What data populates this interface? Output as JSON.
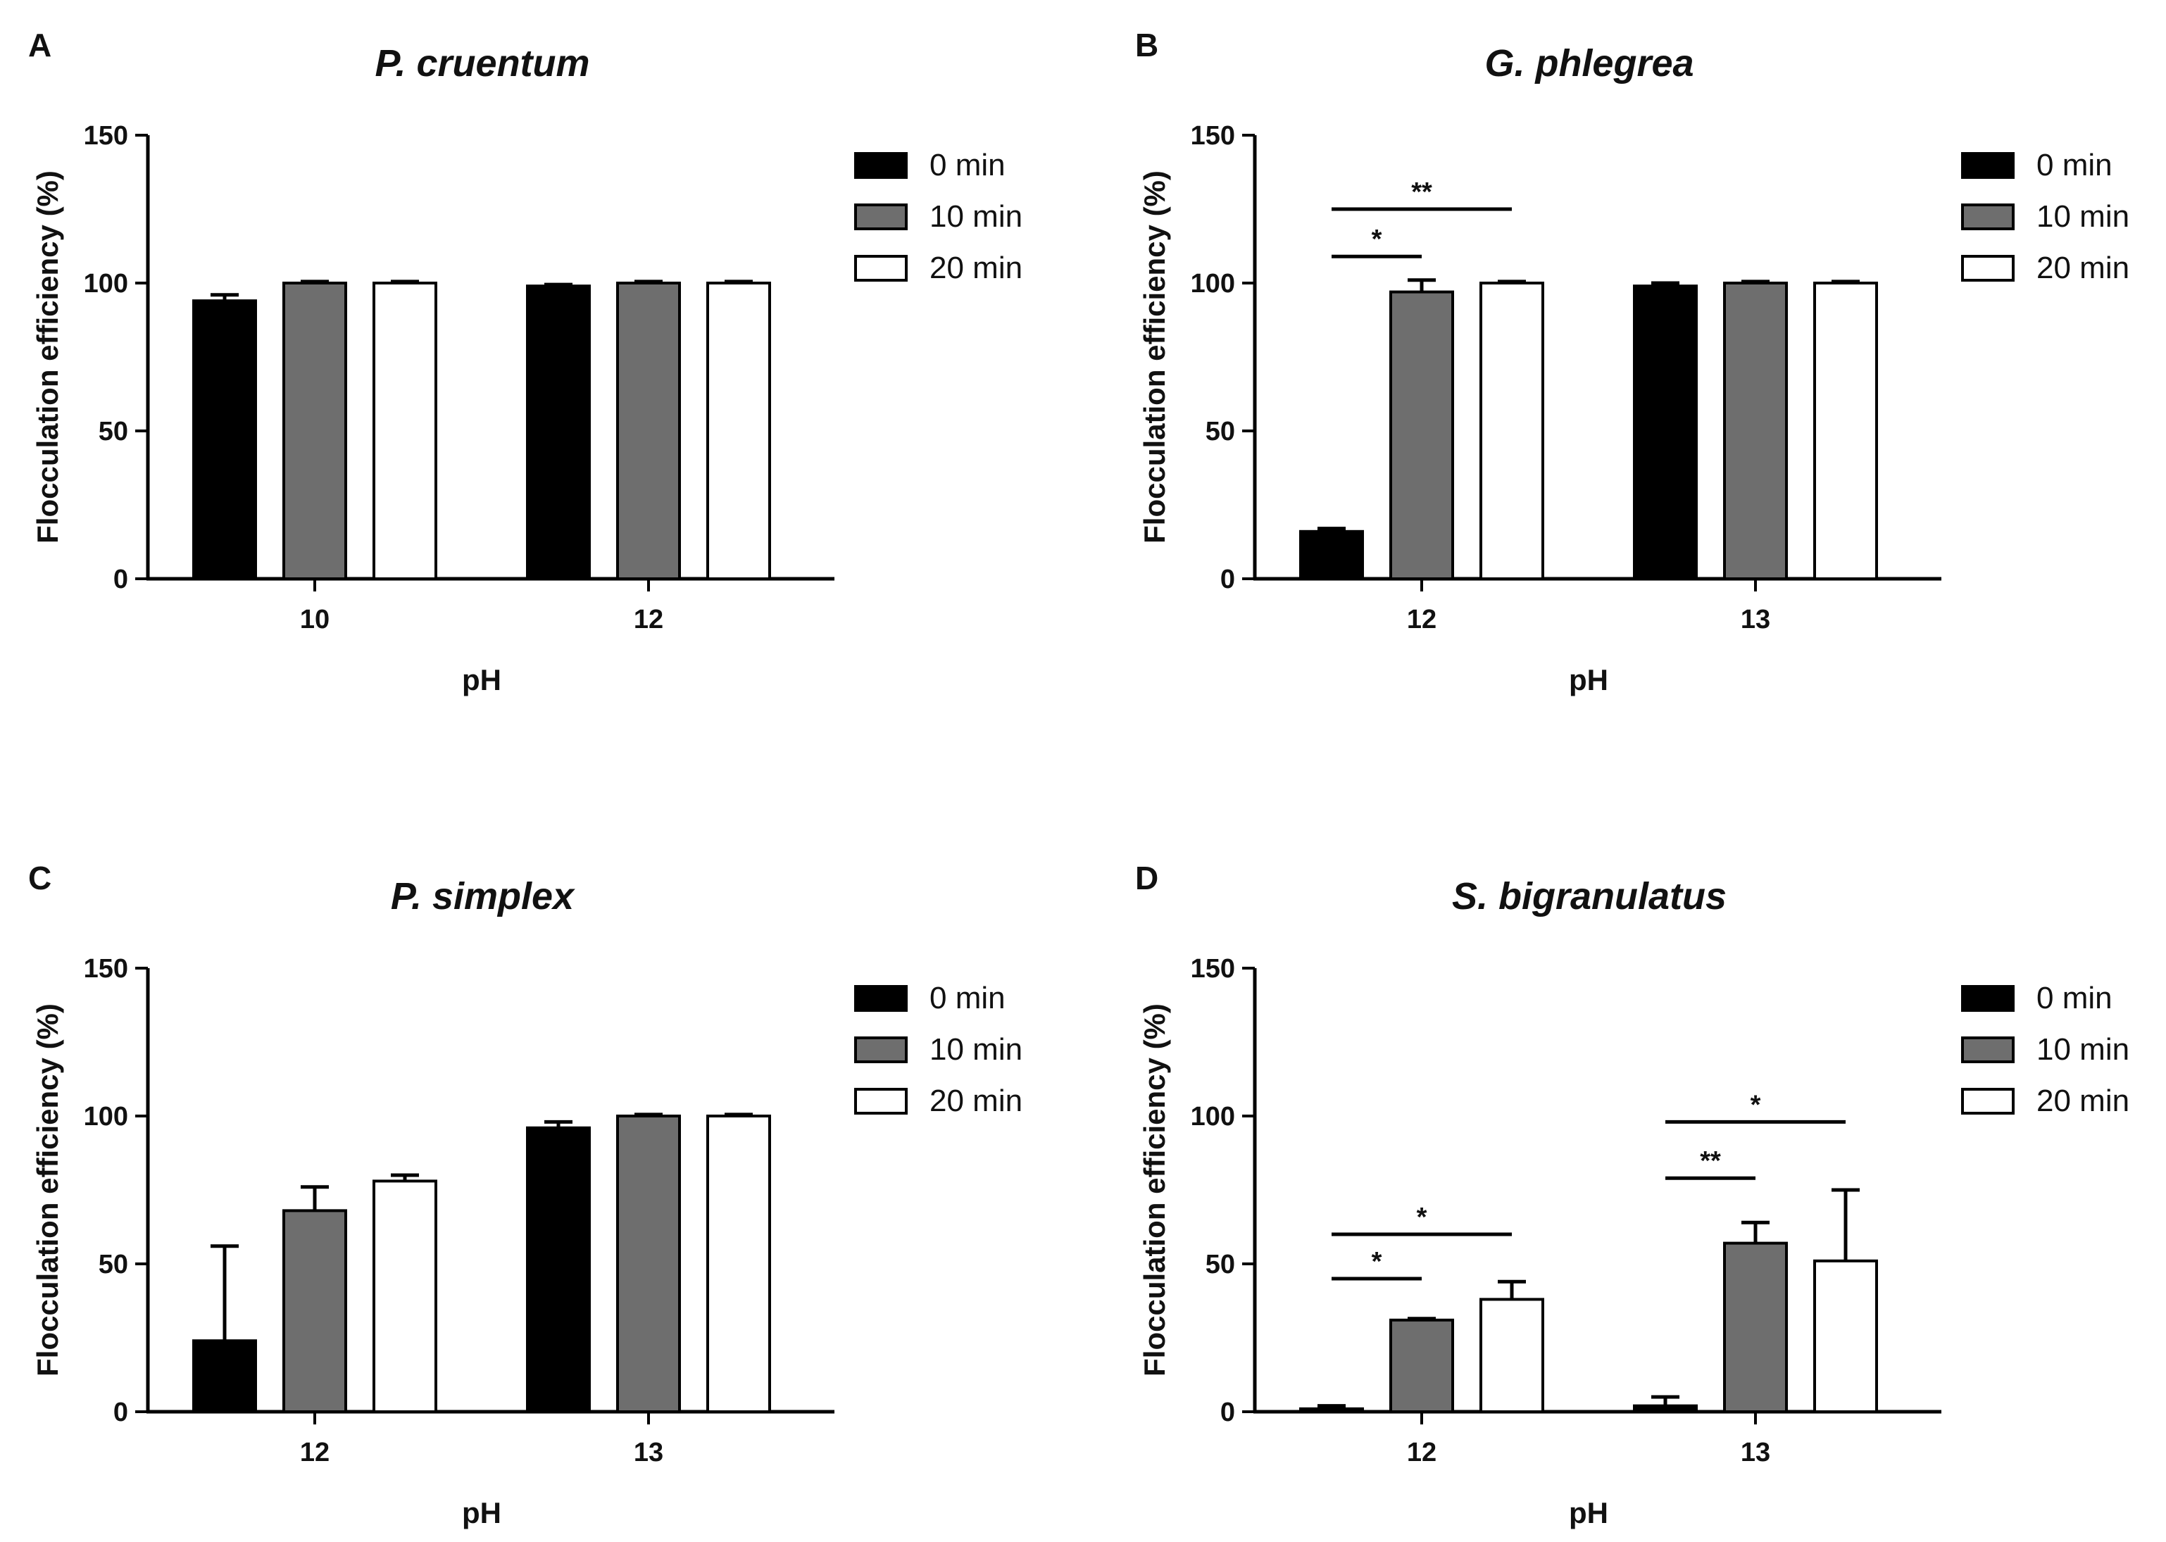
{
  "chart_data": [
    {
      "panel": "A",
      "type": "bar",
      "title": "P. cruentum",
      "xlabel": "pH",
      "ylabel": "Flocculation efficiency (%)",
      "ylim": [
        0,
        150
      ],
      "yticks": [
        "0",
        "50",
        "100",
        "150"
      ],
      "categories": [
        "10",
        "12"
      ],
      "series": [
        {
          "name": "0 min",
          "color": "#000000",
          "values": [
            94,
            99
          ],
          "errors": [
            2,
            0.5
          ]
        },
        {
          "name": "10 min",
          "color": "#6e6e6e",
          "values": [
            100,
            100
          ],
          "errors": [
            0.5,
            0.5
          ]
        },
        {
          "name": "20 min",
          "color": "#ffffff",
          "values": [
            100,
            100
          ],
          "errors": [
            0.5,
            0.5
          ]
        }
      ],
      "significance": [],
      "legend_position": "right"
    },
    {
      "panel": "B",
      "type": "bar",
      "title": "G. phlegrea",
      "xlabel": "pH",
      "ylabel": "Flocculation efficiency (%)",
      "ylim": [
        0,
        150
      ],
      "yticks": [
        "0",
        "50",
        "100",
        "150"
      ],
      "categories": [
        "12",
        "13"
      ],
      "series": [
        {
          "name": "0 min",
          "color": "#000000",
          "values": [
            16,
            99
          ],
          "errors": [
            1,
            1
          ]
        },
        {
          "name": "10 min",
          "color": "#6e6e6e",
          "values": [
            97,
            100
          ],
          "errors": [
            4,
            0.5
          ]
        },
        {
          "name": "20 min",
          "color": "#ffffff",
          "values": [
            100,
            100
          ],
          "errors": [
            0.5,
            0.5
          ]
        }
      ],
      "significance": [
        {
          "category": 0,
          "from": 0,
          "to": 1,
          "y": 109,
          "label": "*"
        },
        {
          "category": 0,
          "from": 0,
          "to": 2,
          "y": 125,
          "label": "**"
        }
      ],
      "legend_position": "right"
    },
    {
      "panel": "C",
      "type": "bar",
      "title": "P. simplex",
      "xlabel": "pH",
      "ylabel": "Flocculation efficiency (%)",
      "ylim": [
        0,
        150
      ],
      "yticks": [
        "0",
        "50",
        "100",
        "150"
      ],
      "categories": [
        "12",
        "13"
      ],
      "series": [
        {
          "name": "0 min",
          "color": "#000000",
          "values": [
            24,
            96
          ],
          "errors": [
            32,
            2
          ]
        },
        {
          "name": "10 min",
          "color": "#6e6e6e",
          "values": [
            68,
            100
          ],
          "errors": [
            8,
            0.5
          ]
        },
        {
          "name": "20 min",
          "color": "#ffffff",
          "values": [
            78,
            100
          ],
          "errors": [
            2,
            0.5
          ]
        }
      ],
      "significance": [],
      "legend_position": "right"
    },
    {
      "panel": "D",
      "type": "bar",
      "title": "S. bigranulatus",
      "xlabel": "pH",
      "ylabel": "Flocculation efficiency (%)",
      "ylim": [
        0,
        150
      ],
      "yticks": [
        "0",
        "50",
        "100",
        "150"
      ],
      "categories": [
        "12",
        "13"
      ],
      "series": [
        {
          "name": "0 min",
          "color": "#000000",
          "values": [
            1,
            2
          ],
          "errors": [
            1,
            3
          ]
        },
        {
          "name": "10 min",
          "color": "#6e6e6e",
          "values": [
            31,
            57
          ],
          "errors": [
            0.5,
            7
          ]
        },
        {
          "name": "20 min",
          "color": "#ffffff",
          "values": [
            38,
            51
          ],
          "errors": [
            6,
            24
          ]
        }
      ],
      "significance": [
        {
          "category": 0,
          "from": 0,
          "to": 1,
          "y": 45,
          "label": "*"
        },
        {
          "category": 0,
          "from": 0,
          "to": 2,
          "y": 60,
          "label": "*"
        },
        {
          "category": 1,
          "from": 0,
          "to": 1,
          "y": 79,
          "label": "**"
        },
        {
          "category": 1,
          "from": 0,
          "to": 2,
          "y": 98,
          "label": "*"
        }
      ],
      "legend_position": "right"
    }
  ]
}
